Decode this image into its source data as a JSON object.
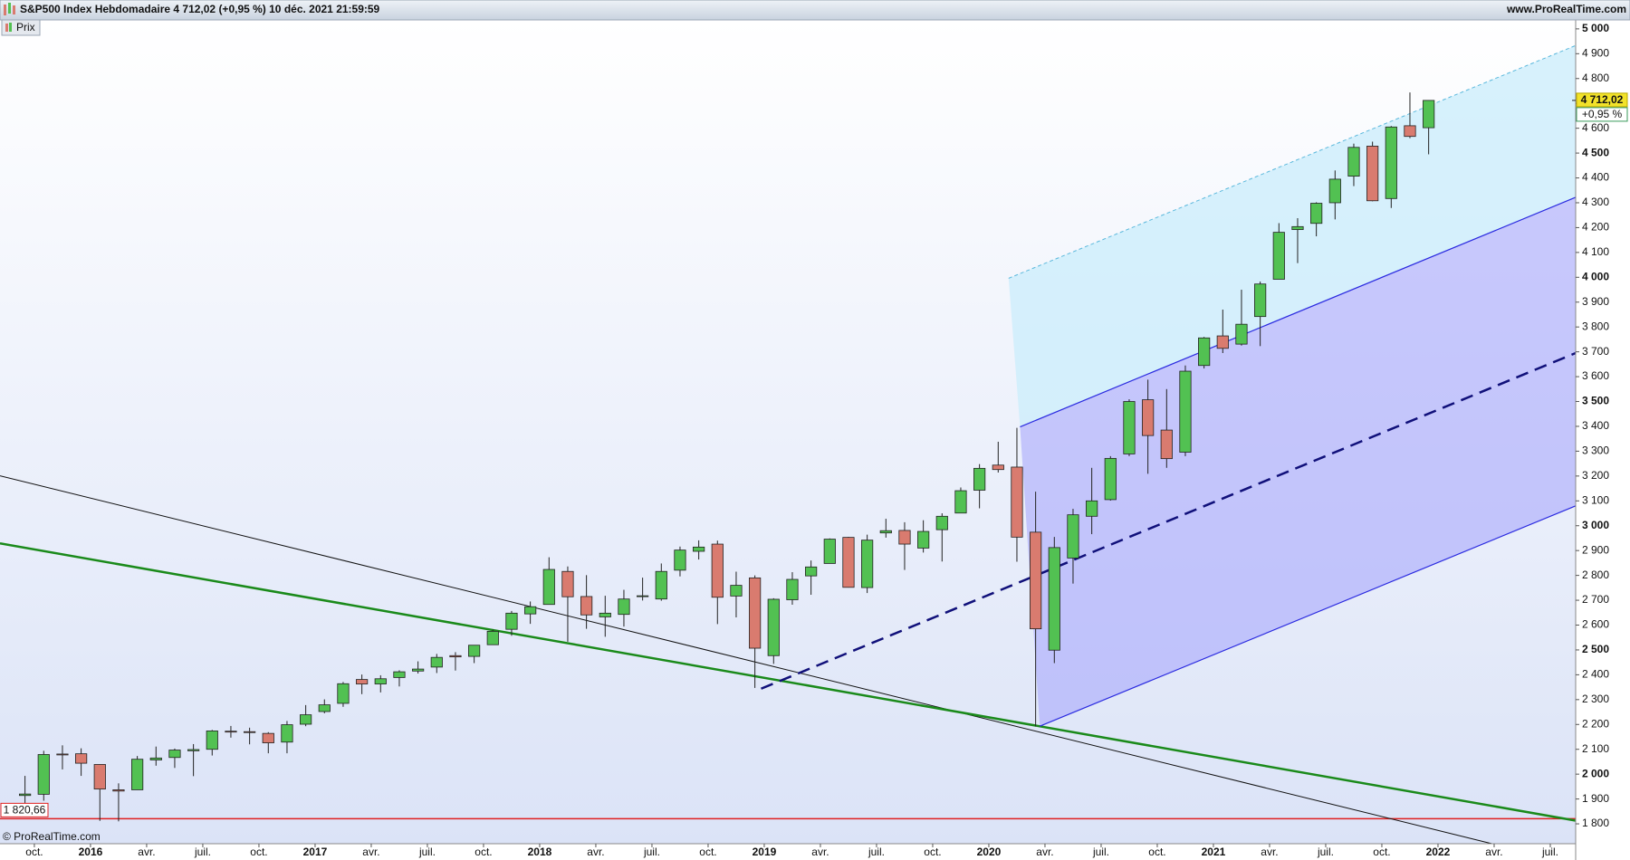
{
  "chart_data": {
    "type": "candlestick",
    "title": "S&P500 Index Hebdomadaire 4 712,02 (+0,95 %) 10 déc. 2021 21:59:59",
    "source": "www.ProRealTime.com",
    "legend": "Prix",
    "copyright": "© ProRealTime.com",
    "up_color": "#52c152",
    "down_color": "#d97b6f",
    "xlim": [
      2015.597,
      2022.613
    ],
    "ylim": [
      1720,
      5036
    ],
    "xticks": [
      {
        "value": 2015.75,
        "label": "oct."
      },
      2016,
      {
        "value": 2016.25,
        "label": "avr."
      },
      {
        "value": 2016.5,
        "label": "juil."
      },
      {
        "value": 2016.75,
        "label": "oct."
      },
      2017,
      {
        "value": 2017.25,
        "label": "avr."
      },
      {
        "value": 2017.5,
        "label": "juil."
      },
      {
        "value": 2017.75,
        "label": "oct."
      },
      2018,
      {
        "value": 2018.25,
        "label": "avr."
      },
      {
        "value": 2018.5,
        "label": "juil."
      },
      {
        "value": 2018.75,
        "label": "oct."
      },
      2019,
      {
        "value": 2019.25,
        "label": "avr."
      },
      {
        "value": 2019.5,
        "label": "juil."
      },
      {
        "value": 2019.75,
        "label": "oct."
      },
      2020,
      {
        "value": 2020.25,
        "label": "avr."
      },
      {
        "value": 2020.5,
        "label": "juil."
      },
      {
        "value": 2020.75,
        "label": "oct."
      },
      2021,
      {
        "value": 2021.25,
        "label": "avr."
      },
      {
        "value": 2021.5,
        "label": "juil."
      },
      {
        "value": 2021.75,
        "label": "oct."
      },
      2022,
      {
        "value": 2022.25,
        "label": "avr."
      },
      {
        "value": 2022.5,
        "label": "juil."
      }
    ],
    "yticks": [
      {
        "value": 1800,
        "label": "1 800"
      },
      {
        "value": 1900,
        "label": "1 900"
      },
      {
        "value": 2000,
        "label": "2 000"
      },
      {
        "value": 2100,
        "label": "2 100"
      },
      {
        "value": 2200,
        "label": "2 200"
      },
      {
        "value": 2300,
        "label": "2 300"
      },
      {
        "value": 2400,
        "label": "2 400"
      },
      {
        "value": 2500,
        "label": "2 500"
      },
      {
        "value": 2600,
        "label": "2 600"
      },
      {
        "value": 2700,
        "label": "2 700"
      },
      {
        "value": 2800,
        "label": "2 800"
      },
      {
        "value": 2900,
        "label": "2 900"
      },
      {
        "value": 3000,
        "label": "3 000"
      },
      {
        "value": 3100,
        "label": "3 100"
      },
      {
        "value": 3200,
        "label": "3 200"
      },
      {
        "value": 3300,
        "label": "3 300"
      },
      {
        "value": 3400,
        "label": "3 400"
      },
      {
        "value": 3500,
        "label": "3 500"
      },
      {
        "value": 3600,
        "label": "3 600"
      },
      {
        "value": 3700,
        "label": "3 700"
      },
      {
        "value": 3800,
        "label": "3 800"
      },
      {
        "value": 3900,
        "label": "3 900"
      },
      {
        "value": 4000,
        "label": "4 000"
      },
      {
        "value": 4100,
        "label": "4 100"
      },
      {
        "value": 4200,
        "label": "4 200"
      },
      {
        "value": 4300,
        "label": "4 300"
      },
      {
        "value": 4400,
        "label": "4 400"
      },
      {
        "value": 4500,
        "label": "4 500"
      },
      {
        "value": 4600,
        "label": "4 600"
      },
      {
        "value": 4700,
        "label": "4 700"
      },
      {
        "value": 4800,
        "label": "4 800"
      },
      {
        "value": 4900,
        "label": "4 900"
      },
      {
        "value": 5000,
        "label": "5 000"
      }
    ],
    "x": [
      "2015-09",
      "2015-10",
      "2015-11",
      "2015-12",
      "2016-01",
      "2016-02",
      "2016-03",
      "2016-04",
      "2016-05",
      "2016-06",
      "2016-07",
      "2016-08",
      "2016-09",
      "2016-10",
      "2016-11",
      "2016-12",
      "2017-01",
      "2017-02",
      "2017-03",
      "2017-04",
      "2017-05",
      "2017-06",
      "2017-07",
      "2017-08",
      "2017-09",
      "2017-10",
      "2017-11",
      "2017-12",
      "2018-01",
      "2018-02",
      "2018-03",
      "2018-04",
      "2018-05",
      "2018-06",
      "2018-07",
      "2018-08",
      "2018-09",
      "2018-10",
      "2018-11",
      "2018-12",
      "2019-01",
      "2019-02",
      "2019-03",
      "2019-04",
      "2019-05",
      "2019-06",
      "2019-07",
      "2019-08",
      "2019-09",
      "2019-10",
      "2019-11",
      "2019-12",
      "2020-01",
      "2020-02",
      "2020-03",
      "2020-04",
      "2020-05",
      "2020-06",
      "2020-07",
      "2020-08",
      "2020-09",
      "2020-10",
      "2020-11",
      "2020-12",
      "2021-01",
      "2021-02",
      "2021-03",
      "2021-04",
      "2021-05",
      "2021-06",
      "2021-07",
      "2021-08",
      "2021-09",
      "2021-10",
      "2021-11",
      "2021-12"
    ],
    "ohlc": [
      [
        1914,
        1993,
        1872,
        1920
      ],
      [
        1919,
        2094,
        1893,
        2079
      ],
      [
        2081,
        2116,
        2019,
        2080
      ],
      [
        2082,
        2104,
        1993,
        2044
      ],
      [
        2039,
        2039,
        1812,
        1940
      ],
      [
        1937,
        1963,
        1810,
        1932
      ],
      [
        1937,
        2073,
        1937,
        2060
      ],
      [
        2057,
        2111,
        2034,
        2065
      ],
      [
        2067,
        2103,
        2025,
        2097
      ],
      [
        2094,
        2121,
        1992,
        2099
      ],
      [
        2100,
        2178,
        2075,
        2174
      ],
      [
        2173,
        2194,
        2147,
        2171
      ],
      [
        2171,
        2187,
        2120,
        2168
      ],
      [
        2164,
        2169,
        2084,
        2126
      ],
      [
        2129,
        2214,
        2084,
        2199
      ],
      [
        2201,
        2278,
        2193,
        2239
      ],
      [
        2252,
        2301,
        2245,
        2279
      ],
      [
        2285,
        2371,
        2271,
        2364
      ],
      [
        2381,
        2401,
        2322,
        2363
      ],
      [
        2363,
        2398,
        2329,
        2384
      ],
      [
        2389,
        2418,
        2353,
        2412
      ],
      [
        2415,
        2454,
        2405,
        2423
      ],
      [
        2431,
        2484,
        2407,
        2470
      ],
      [
        2477,
        2491,
        2417,
        2472
      ],
      [
        2474,
        2519,
        2447,
        2519
      ],
      [
        2521,
        2582,
        2520,
        2575
      ],
      [
        2583,
        2657,
        2557,
        2648
      ],
      [
        2645,
        2695,
        2605,
        2674
      ],
      [
        2683,
        2873,
        2683,
        2824
      ],
      [
        2816,
        2836,
        2533,
        2714
      ],
      [
        2715,
        2801,
        2585,
        2641
      ],
      [
        2633,
        2718,
        2553,
        2648
      ],
      [
        2643,
        2742,
        2594,
        2705
      ],
      [
        2718,
        2791,
        2699,
        2718
      ],
      [
        2705,
        2848,
        2698,
        2816
      ],
      [
        2821,
        2916,
        2796,
        2902
      ],
      [
        2897,
        2941,
        2864,
        2914
      ],
      [
        2926,
        2940,
        2604,
        2712
      ],
      [
        2717,
        2815,
        2631,
        2760
      ],
      [
        2790,
        2800,
        2347,
        2507
      ],
      [
        2477,
        2708,
        2444,
        2704
      ],
      [
        2702,
        2813,
        2682,
        2784
      ],
      [
        2798,
        2860,
        2722,
        2834
      ],
      [
        2848,
        2949,
        2848,
        2946
      ],
      [
        2953,
        2955,
        2751,
        2752
      ],
      [
        2751,
        2964,
        2729,
        2942
      ],
      [
        2971,
        3028,
        2952,
        2980
      ],
      [
        2981,
        3014,
        2822,
        2926
      ],
      [
        2910,
        3022,
        2892,
        2977
      ],
      [
        2984,
        3050,
        2856,
        3038
      ],
      [
        3051,
        3154,
        3050,
        3141
      ],
      [
        3143,
        3248,
        3070,
        3231
      ],
      [
        3244,
        3338,
        3214,
        3226
      ],
      [
        3236,
        3394,
        2855,
        2954
      ],
      [
        2974,
        3137,
        2192,
        2585
      ],
      [
        2499,
        2955,
        2447,
        2912
      ],
      [
        2870,
        3068,
        2767,
        3044
      ],
      [
        3038,
        3233,
        2966,
        3100
      ],
      [
        3105,
        3280,
        3101,
        3271
      ],
      [
        3289,
        3509,
        3280,
        3500
      ],
      [
        3507,
        3588,
        3209,
        3363
      ],
      [
        3385,
        3550,
        3233,
        3270
      ],
      [
        3296,
        3645,
        3280,
        3622
      ],
      [
        3645,
        3760,
        3633,
        3756
      ],
      [
        3764,
        3870,
        3695,
        3714
      ],
      [
        3731,
        3950,
        3725,
        3811
      ],
      [
        3842,
        3983,
        3723,
        3973
      ],
      [
        3992,
        4218,
        3992,
        4181
      ],
      [
        4192,
        4238,
        4057,
        4204
      ],
      [
        4217,
        4302,
        4165,
        4298
      ],
      [
        4300,
        4430,
        4233,
        4395
      ],
      [
        4407,
        4538,
        4367,
        4523
      ],
      [
        4528,
        4546,
        4306,
        4308
      ],
      [
        4317,
        4609,
        4279,
        4605
      ],
      [
        4610,
        4744,
        4560,
        4567
      ],
      [
        4602,
        4713,
        4495,
        4712
      ]
    ],
    "lines": [
      {
        "points": [
          [
            2015.597,
            3201
          ],
          [
            2022.24,
            1720
          ]
        ],
        "color": "#111111",
        "width": 1,
        "dash": "none"
      },
      {
        "points": [
          [
            2015.597,
            2929
          ],
          [
            2022.613,
            1813
          ]
        ],
        "color": "#1a8a1a",
        "width": 2.5,
        "dash": "none"
      },
      {
        "points": [
          [
            2020.139,
            3398
          ],
          [
            2022.613,
            4322
          ]
        ],
        "color": "#2a2ae0",
        "width": 1.2,
        "dash": "none"
      },
      {
        "points": [
          [
            2020.227,
            2193
          ],
          [
            2022.613,
            3080
          ]
        ],
        "color": "#2a2ae0",
        "width": 1.2,
        "dash": "none"
      },
      {
        "points": [
          [
            2018.986,
            2344
          ],
          [
            2022.613,
            3695
          ]
        ],
        "color": "#10107a",
        "width": 2.5,
        "dash": "14 8"
      },
      {
        "points": [
          [
            2020.088,
            3996
          ],
          [
            2022.613,
            4933
          ]
        ],
        "color": "#5ab8dc",
        "width": 1,
        "dash": "4 3"
      }
    ],
    "support": {
      "value": 1820.66,
      "label": "1 820,66",
      "color": "#e02020"
    },
    "last_price": {
      "value": 4712.02,
      "label": "4 712,02"
    },
    "change": "+0,95 %"
  }
}
